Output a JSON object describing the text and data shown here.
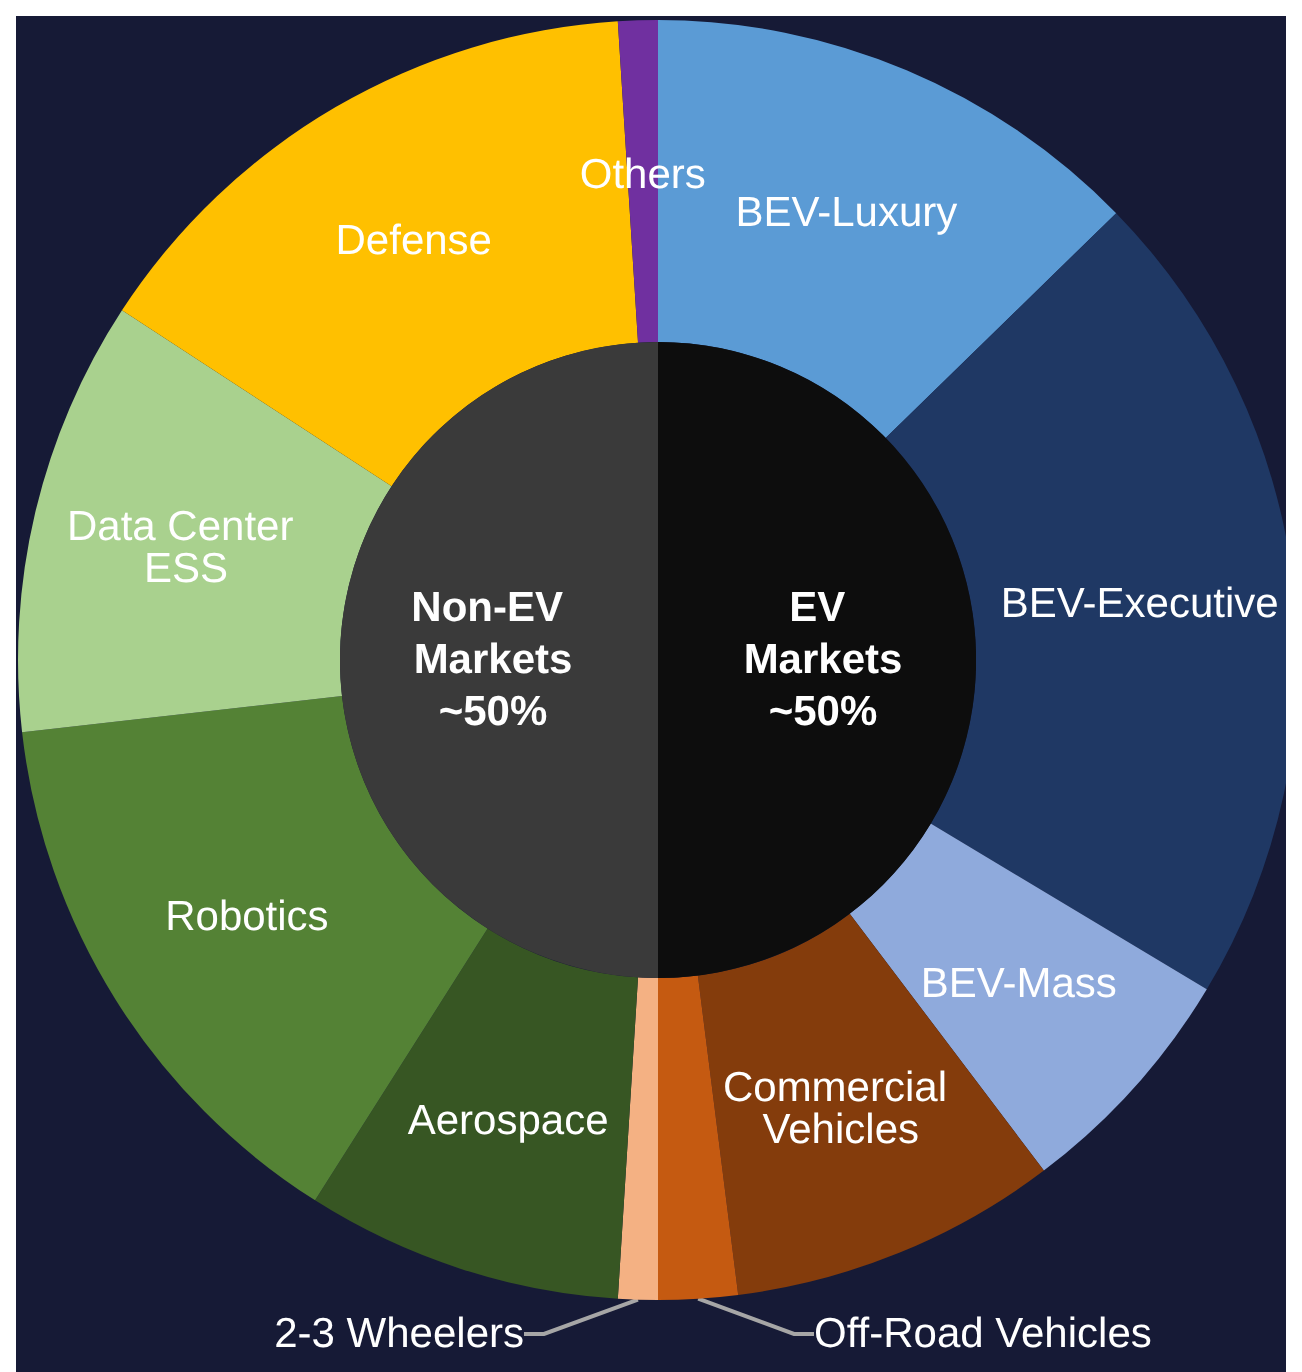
{
  "chart_data": [
    {
      "type": "donut",
      "categories": [
        "BEV-Luxury",
        "BEV-Executive",
        "BEV-Mass",
        "Commercial Vehicles",
        "Off-Road Vehicles",
        "2-3 Wheelers",
        "Aerospace",
        "Robotics",
        "Data Center ESS",
        "Defense",
        "Others"
      ],
      "values": [
        12.7,
        20.9,
        6.1,
        8.3,
        2.0,
        1.0,
        8.0,
        14.2,
        11.0,
        14.8,
        1.0
      ],
      "colors": [
        "#5b9bd5",
        "#1f3864",
        "#8faadc",
        "#843c0c",
        "#c55a11",
        "#f4b183",
        "#375623",
        "#548235",
        "#a9d18e",
        "#ffc000",
        "#7030a0"
      ]
    },
    {
      "type": "pie",
      "categories": [
        "EV Markets",
        "Non-EV Markets"
      ],
      "values": [
        50,
        50
      ],
      "value_labels": [
        "~50%",
        "~50%"
      ],
      "colors": [
        "#0d0d0d",
        "#3a3a3a"
      ]
    }
  ]
}
